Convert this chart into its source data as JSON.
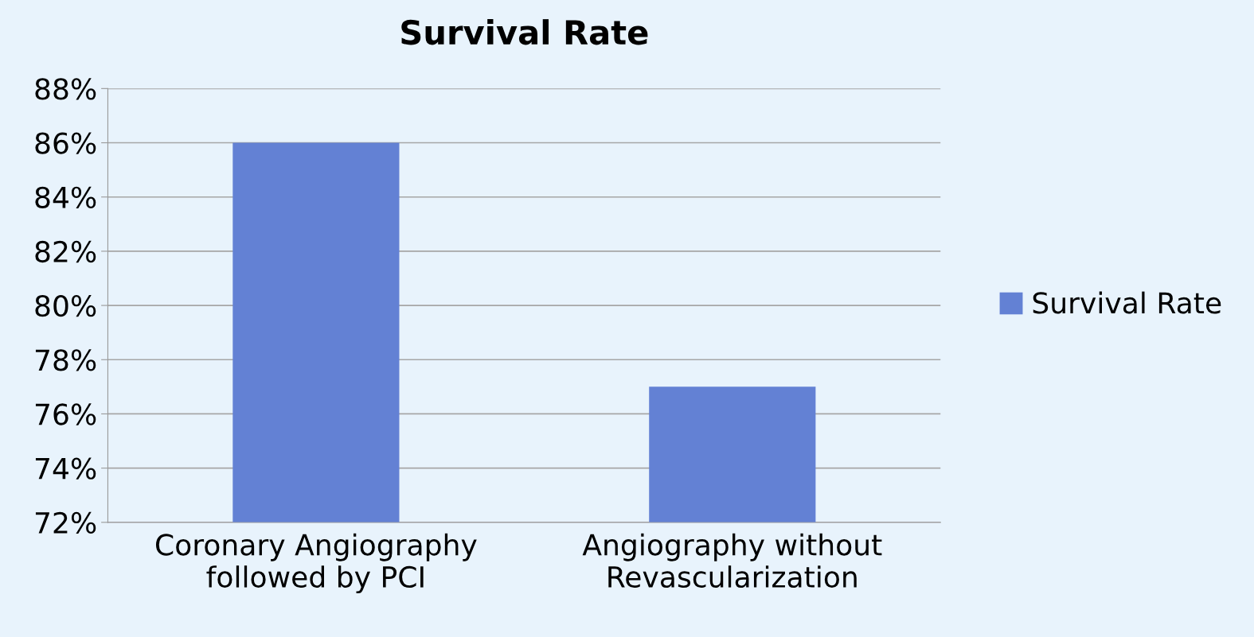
{
  "chart_data": {
    "type": "bar",
    "title": "Survival Rate",
    "categories": [
      "Coronary Angiography\nfollowed by PCI",
      "Angiography without\nRevascularization"
    ],
    "series": [
      {
        "name": "Survival Rate",
        "color": "#6381d4",
        "values": [
          86,
          77
        ]
      }
    ],
    "ylim": [
      72,
      88
    ],
    "yticks": [
      {
        "value": 72,
        "label": "72%"
      },
      {
        "value": 74,
        "label": "74%"
      },
      {
        "value": 76,
        "label": "76%"
      },
      {
        "value": 78,
        "label": "78%"
      },
      {
        "value": 80,
        "label": "80%"
      },
      {
        "value": 82,
        "label": "82%"
      },
      {
        "value": 84,
        "label": "84%"
      },
      {
        "value": 86,
        "label": "86%"
      },
      {
        "value": 88,
        "label": "88%"
      }
    ],
    "grid": "y",
    "legend": "right"
  }
}
